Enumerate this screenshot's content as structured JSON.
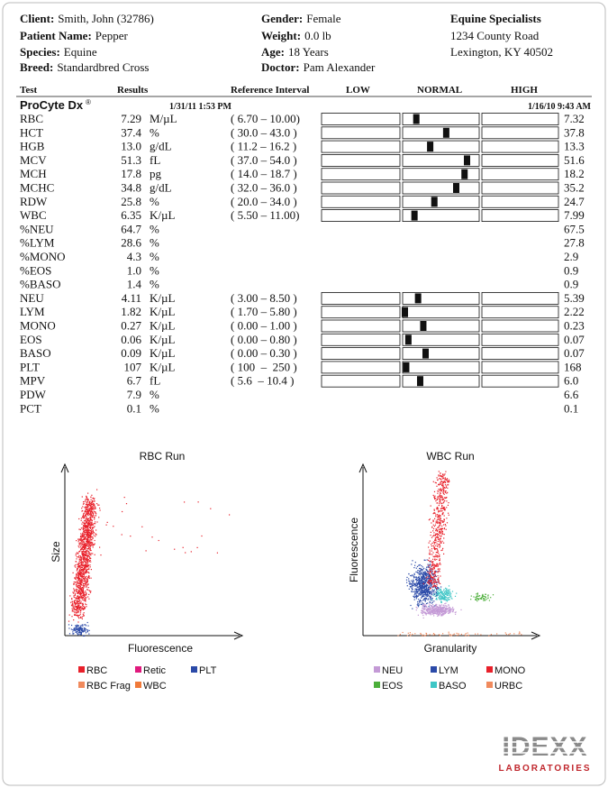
{
  "header": {
    "patient": [
      {
        "label": "Client:",
        "value": "Smith, John (32786)"
      },
      {
        "label": "Patient Name:",
        "value": "Pepper"
      },
      {
        "label": "Species:",
        "value": "Equine"
      },
      {
        "label": "Breed:",
        "value": "Standardbred Cross"
      }
    ],
    "patient2": [
      {
        "label": "Gender:",
        "value": "Female"
      },
      {
        "label": "Weight:",
        "value": "0.0 lb"
      },
      {
        "label": "Age:",
        "value": "18 Years"
      },
      {
        "label": "Doctor:",
        "value": "Pam Alexander"
      }
    ],
    "clinic": [
      "Equine Specialists",
      "1234 County Road",
      "Lexington, KY 40502"
    ]
  },
  "table": {
    "columns": [
      "Test",
      "Results",
      "Reference Interval",
      "LOW",
      "NORMAL",
      "HIGH"
    ],
    "analyzer": "ProCyte Dx",
    "analyzer_mark": "®",
    "date": "1/31/11 1:53 PM",
    "previous_date": "1/16/10 9:43 AM",
    "rows": [
      {
        "test": "RBC",
        "result": "7.29",
        "unit": "M/µL",
        "reference": "( 6.70 – 10.00)",
        "previous": "7.32"
      },
      {
        "test": "HCT",
        "result": "37.4",
        "unit": "%",
        "reference": "( 30.0 – 43.0 )",
        "previous": "37.8"
      },
      {
        "test": "HGB",
        "result": "13.0",
        "unit": "g/dL",
        "reference": "( 11.2 – 16.2 )",
        "previous": "13.3"
      },
      {
        "test": "MCV",
        "result": "51.3",
        "unit": "fL",
        "reference": "( 37.0 – 54.0 )",
        "previous": "51.6"
      },
      {
        "test": "MCH",
        "result": "17.8",
        "unit": "pg",
        "reference": "( 14.0 – 18.7 )",
        "previous": "18.2"
      },
      {
        "test": "MCHC",
        "result": "34.8",
        "unit": "g/dL",
        "reference": "( 32.0 – 36.0 )",
        "previous": "35.2"
      },
      {
        "test": "RDW",
        "result": "25.8",
        "unit": "%",
        "reference": "( 20.0 – 34.0 )",
        "previous": "24.7"
      },
      {
        "test": "WBC",
        "result": "6.35",
        "unit": "K/µL",
        "reference": "( 5.50 – 11.00)",
        "previous": "7.99"
      },
      {
        "test": "%NEU",
        "result": "64.7",
        "unit": "%",
        "previous": "67.5"
      },
      {
        "test": "%LYM",
        "result": "28.6",
        "unit": "%",
        "previous": "27.8"
      },
      {
        "test": "%MONO",
        "result": "4.3",
        "unit": "%",
        "previous": "2.9"
      },
      {
        "test": "%EOS",
        "result": "1.0",
        "unit": "%",
        "previous": "0.9"
      },
      {
        "test": "%BASO",
        "result": "1.4",
        "unit": "%",
        "previous": "0.9"
      },
      {
        "test": "NEU",
        "result": "4.11",
        "unit": "K/µL",
        "reference": "( 3.00 – 8.50 )",
        "previous": "5.39"
      },
      {
        "test": "LYM",
        "result": "1.82",
        "unit": "K/µL",
        "reference": "( 1.70 – 5.80 )",
        "previous": "2.22"
      },
      {
        "test": "MONO",
        "result": "0.27",
        "unit": "K/µL",
        "reference": "( 0.00 – 1.00 )",
        "previous": "0.23"
      },
      {
        "test": "EOS",
        "result": "0.06",
        "unit": "K/µL",
        "reference": "( 0.00 – 0.80 )",
        "previous": "0.07"
      },
      {
        "test": "BASO",
        "result": "0.09",
        "unit": "K/µL",
        "reference": "( 0.00 – 0.30 )",
        "previous": "0.07"
      },
      {
        "test": "PLT",
        "result": "107",
        "unit": "K/µL",
        "reference": "( 100  –  250 )",
        "previous": "168"
      },
      {
        "test": "MPV",
        "result": "6.7",
        "unit": "fL",
        "reference": "( 5.6  – 10.4 )",
        "previous": "6.0"
      },
      {
        "test": "PDW",
        "result": "7.9",
        "unit": "%",
        "previous": "6.6"
      },
      {
        "test": "PCT",
        "result": "0.1",
        "unit": "%",
        "previous": "0.1"
      }
    ]
  },
  "plots": [
    {
      "title": "RBC Run",
      "y_label": "Size",
      "x_label": "Fluorescence",
      "legend": [
        {
          "name": "RBC",
          "color": "#e8202a"
        },
        {
          "name": "Retic",
          "color": "#e0197d"
        },
        {
          "name": "PLT",
          "color": "#2b4aa8"
        },
        {
          "name": "RBC Frag",
          "color": "#f08a5d"
        },
        {
          "name": "WBC",
          "color": "#f07a3a"
        }
      ]
    },
    {
      "title": "WBC Run",
      "y_label": "Fluorescence",
      "x_label": "Granularity",
      "legend": [
        {
          "name": "NEU",
          "color": "#c49ad6"
        },
        {
          "name": "LYM",
          "color": "#2b4aa8"
        },
        {
          "name": "MONO",
          "color": "#e8202a"
        },
        {
          "name": "EOS",
          "color": "#4caf3a"
        },
        {
          "name": "BASO",
          "color": "#3ec6c6"
        },
        {
          "name": "URBC",
          "color": "#f08a5d"
        }
      ]
    }
  ],
  "logo": {
    "name": "IDEXX",
    "subtitle": "LABORATORIES"
  }
}
